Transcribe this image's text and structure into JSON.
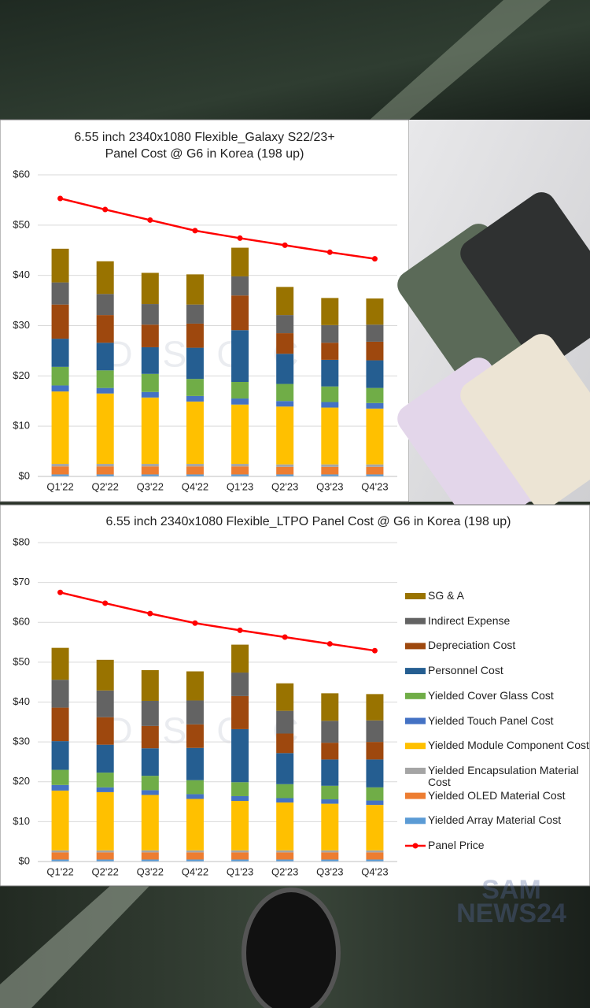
{
  "chart_data": [
    {
      "type": "bar",
      "stacked": true,
      "title": "6.55 inch 2340x1080 Flexible_Galaxy  S22/23+\nPanel Cost @ G6  in Korea (198 up)",
      "watermark": "DSCC",
      "categories": [
        "Q1'22",
        "Q2'22",
        "Q3'22",
        "Q4'22",
        "Q1'23",
        "Q2'23",
        "Q3'23",
        "Q4'23"
      ],
      "ylim": [
        0,
        60
      ],
      "yticks": [
        {
          "value": 0,
          "label": "$0"
        },
        {
          "value": 10,
          "label": "$10"
        },
        {
          "value": 20,
          "label": "$20"
        },
        {
          "value": 30,
          "label": "$30"
        },
        {
          "value": 40,
          "label": "$40"
        },
        {
          "value": 50,
          "label": "$50"
        },
        {
          "value": 60,
          "label": "$60"
        }
      ],
      "grid": true,
      "series": [
        {
          "color": "#5b9bd5",
          "values": [
            0.4,
            0.4,
            0.4,
            0.4,
            0.4,
            0.4,
            0.4,
            0.4
          ]
        },
        {
          "color": "#ed7d31",
          "values": [
            1.6,
            1.6,
            1.6,
            1.6,
            1.6,
            1.5,
            1.5,
            1.5
          ]
        },
        {
          "color": "#a5a5a5",
          "values": [
            0.5,
            0.5,
            0.5,
            0.5,
            0.5,
            0.5,
            0.5,
            0.5
          ]
        },
        {
          "color": "#ffc000",
          "values": [
            14.4,
            14.0,
            13.2,
            12.4,
            11.8,
            11.5,
            11.3,
            11.1
          ]
        },
        {
          "color": "#4472c4",
          "values": [
            1.2,
            1.1,
            1.1,
            1.1,
            1.2,
            1.1,
            1.1,
            1.1
          ]
        },
        {
          "color": "#70ad47",
          "values": [
            3.7,
            3.5,
            3.6,
            3.4,
            3.3,
            3.4,
            3.1,
            3.0
          ]
        },
        {
          "color": "#255e91",
          "values": [
            5.6,
            5.5,
            5.3,
            6.2,
            10.3,
            6.0,
            5.3,
            5.5
          ]
        },
        {
          "color": "#9e480e",
          "values": [
            6.8,
            5.5,
            4.5,
            4.8,
            6.9,
            4.1,
            3.4,
            3.7
          ]
        },
        {
          "color": "#636363",
          "values": [
            4.4,
            4.2,
            4.1,
            3.8,
            3.8,
            3.6,
            3.5,
            3.4
          ]
        },
        {
          "color": "#997300",
          "values": [
            6.7,
            6.5,
            6.2,
            6.0,
            5.7,
            5.6,
            5.4,
            5.2
          ]
        },
        {
          "type": "line",
          "color": "#ff0000",
          "values": [
            55.3,
            53.1,
            51.0,
            48.9,
            47.4,
            46.0,
            44.6,
            43.3
          ]
        }
      ]
    },
    {
      "type": "bar",
      "stacked": true,
      "title": "6.55 inch 2340x1080 Flexible_LTPO Panel Cost @ G6  in Korea (198 up)",
      "watermark": "DSCC",
      "legend": "right",
      "categories": [
        "Q1'22",
        "Q2'22",
        "Q3'22",
        "Q4'22",
        "Q1'23",
        "Q2'23",
        "Q3'23",
        "Q4'23"
      ],
      "ylim": [
        0,
        80
      ],
      "yticks": [
        {
          "value": 0,
          "label": "$0"
        },
        {
          "value": 10,
          "label": "$10"
        },
        {
          "value": 20,
          "label": "$20"
        },
        {
          "value": 30,
          "label": "$30"
        },
        {
          "value": 40,
          "label": "$40"
        },
        {
          "value": 50,
          "label": "$50"
        },
        {
          "value": 60,
          "label": "$60"
        },
        {
          "value": 70,
          "label": "$70"
        },
        {
          "value": 80,
          "label": "$80"
        }
      ],
      "grid": true,
      "series": [
        {
          "name": "Yielded Array Material Cost",
          "color": "#5b9bd5",
          "values": [
            0.5,
            0.5,
            0.5,
            0.5,
            0.5,
            0.5,
            0.5,
            0.5
          ]
        },
        {
          "name": "Yielded OLED Material Cost",
          "color": "#ed7d31",
          "values": [
            1.8,
            1.8,
            1.8,
            1.8,
            1.8,
            1.8,
            1.8,
            1.8
          ]
        },
        {
          "name": "Yielded Encapsulation Material Cost",
          "color": "#a5a5a5",
          "values": [
            0.5,
            0.5,
            0.5,
            0.5,
            0.5,
            0.5,
            0.5,
            0.5
          ]
        },
        {
          "name": "Yielded Module Component Cost",
          "color": "#ffc000",
          "values": [
            15.0,
            14.6,
            13.9,
            12.9,
            12.4,
            12.0,
            11.7,
            11.4
          ]
        },
        {
          "name": "Yielded Touch Panel Cost",
          "color": "#4472c4",
          "values": [
            1.4,
            1.2,
            1.2,
            1.2,
            1.2,
            1.1,
            1.1,
            1.1
          ]
        },
        {
          "name": "Yielded Cover Glass Cost",
          "color": "#70ad47",
          "values": [
            3.8,
            3.7,
            3.6,
            3.5,
            3.5,
            3.5,
            3.4,
            3.3
          ]
        },
        {
          "name": "Personnel Cost",
          "color": "#255e91",
          "values": [
            7.2,
            7.0,
            6.9,
            8.1,
            13.3,
            7.8,
            6.6,
            7.0
          ]
        },
        {
          "name": "Depreciation Cost",
          "color": "#9e480e",
          "values": [
            8.4,
            6.9,
            5.6,
            5.9,
            8.3,
            4.9,
            4.2,
            4.4
          ]
        },
        {
          "name": "Indirect Expense",
          "color": "#636363",
          "values": [
            7.0,
            6.7,
            6.3,
            6.0,
            5.9,
            5.7,
            5.5,
            5.4
          ]
        },
        {
          "name": "SG & A",
          "color": "#997300",
          "values": [
            8.0,
            7.7,
            7.7,
            7.3,
            7.0,
            6.9,
            6.9,
            6.6
          ]
        },
        {
          "name": "Panel Price",
          "type": "line",
          "color": "#ff0000",
          "values": [
            67.5,
            64.8,
            62.2,
            59.8,
            58.0,
            56.3,
            54.6,
            52.9
          ]
        }
      ]
    }
  ],
  "watermark": [
    "SAM",
    "NEWS24"
  ]
}
